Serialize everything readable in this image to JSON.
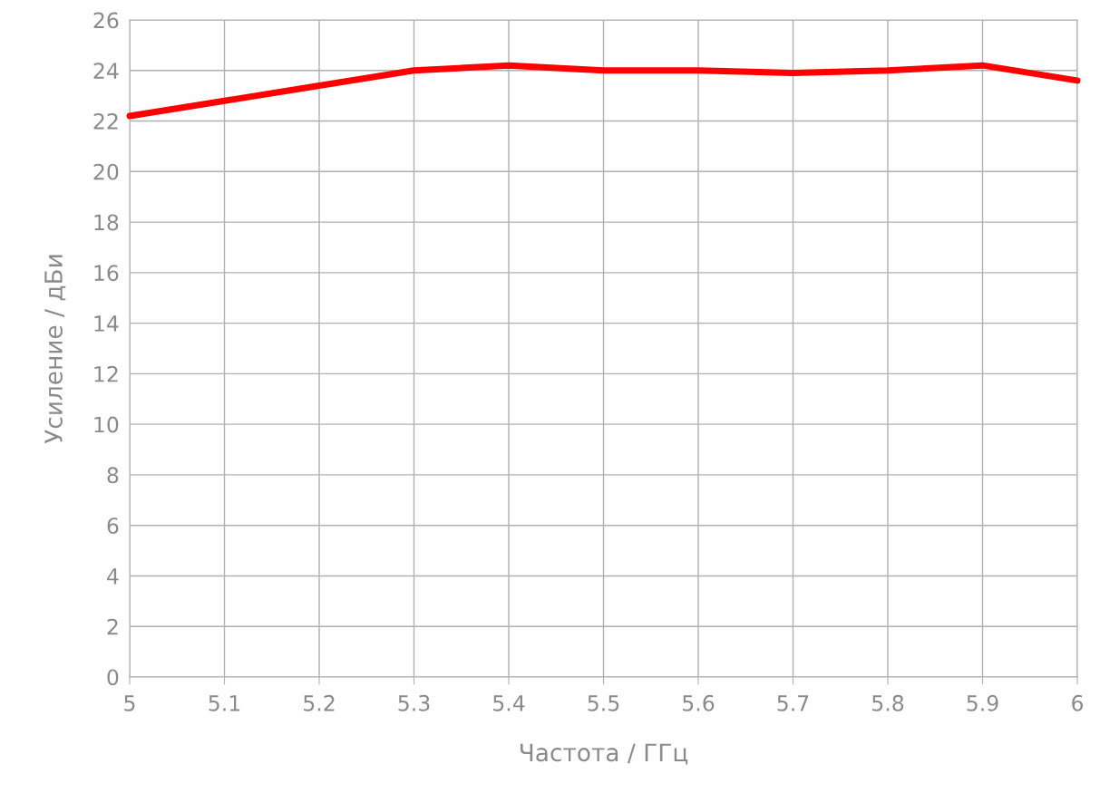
{
  "chart_data": {
    "type": "line",
    "xlabel": "Частота / ГГц",
    "ylabel": "Усиление / дБи",
    "x": [
      5,
      5.1,
      5.2,
      5.3,
      5.4,
      5.5,
      5.6,
      5.7,
      5.8,
      5.9,
      6
    ],
    "series": [
      {
        "color": "#ff0000",
        "values": [
          22.2,
          22.8,
          23.4,
          24.0,
          24.2,
          24.0,
          24.0,
          23.9,
          24.0,
          24.2,
          23.6
        ]
      }
    ],
    "xlim": [
      5,
      6
    ],
    "xticks": [
      5,
      5.1,
      5.2,
      5.3,
      5.4,
      5.5,
      5.6,
      5.7,
      5.8,
      5.9,
      6
    ],
    "ylim": [
      0,
      26
    ],
    "yticks": [
      0,
      2,
      4,
      6,
      8,
      10,
      12,
      14,
      16,
      18,
      20,
      22,
      24,
      26
    ],
    "grid": true,
    "legend": false,
    "marker": "none",
    "line_style": "solid"
  }
}
